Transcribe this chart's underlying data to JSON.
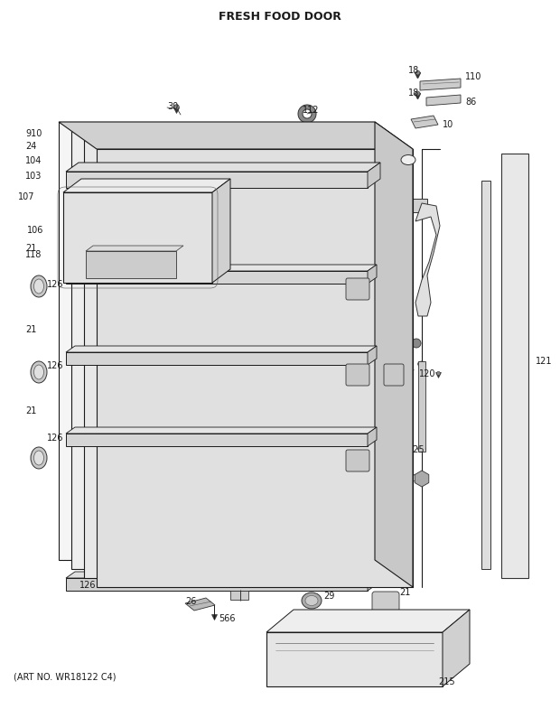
{
  "title": "FRESH FOOD DOOR",
  "art_no": "(ART NO. WR18122 C4)",
  "bg_color": "#ffffff",
  "fg_color": "#1a1a1a",
  "title_fontsize": 9,
  "label_fontsize": 7,
  "fig_width": 6.2,
  "fig_height": 7.85,
  "dpi": 100
}
